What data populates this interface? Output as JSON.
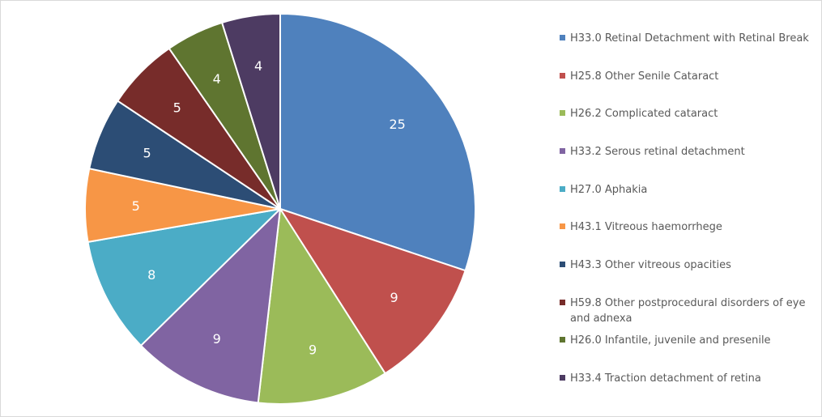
{
  "chart_data": {
    "type": "pie",
    "title": "",
    "start_angle": "12 o'clock",
    "direction": "clockwise",
    "legend_position": "right",
    "categories": [
      "H33.0 Retinal Detachment with Retinal Break",
      "H25.8 Other Senile Cataract",
      "H26.2 Complicated cataract",
      "H33.2 Serous retinal detachment",
      "H27.0 Aphakia",
      "H43.1 Vitreous haemorrhege",
      "H43.3 Other vitreous opacities",
      "H59.8 Other postprocedural disorders of eye and adnexa",
      "H26.0 Infantile, juvenile and presenile",
      "H33.4 Traction detachment of retina"
    ],
    "values": [
      25,
      9,
      9,
      9,
      8,
      5,
      5,
      5,
      4,
      4
    ],
    "data_labels": [
      "25",
      "9",
      "9",
      "9",
      "8",
      "5",
      "5",
      "5",
      "4",
      "4"
    ],
    "colors": [
      "#4F81BD",
      "#C0504D",
      "#9BBB59",
      "#8064A2",
      "#4BACC6",
      "#F79646",
      "#2C4D75",
      "#772C2A",
      "#5F7530",
      "#4D3B62"
    ]
  }
}
